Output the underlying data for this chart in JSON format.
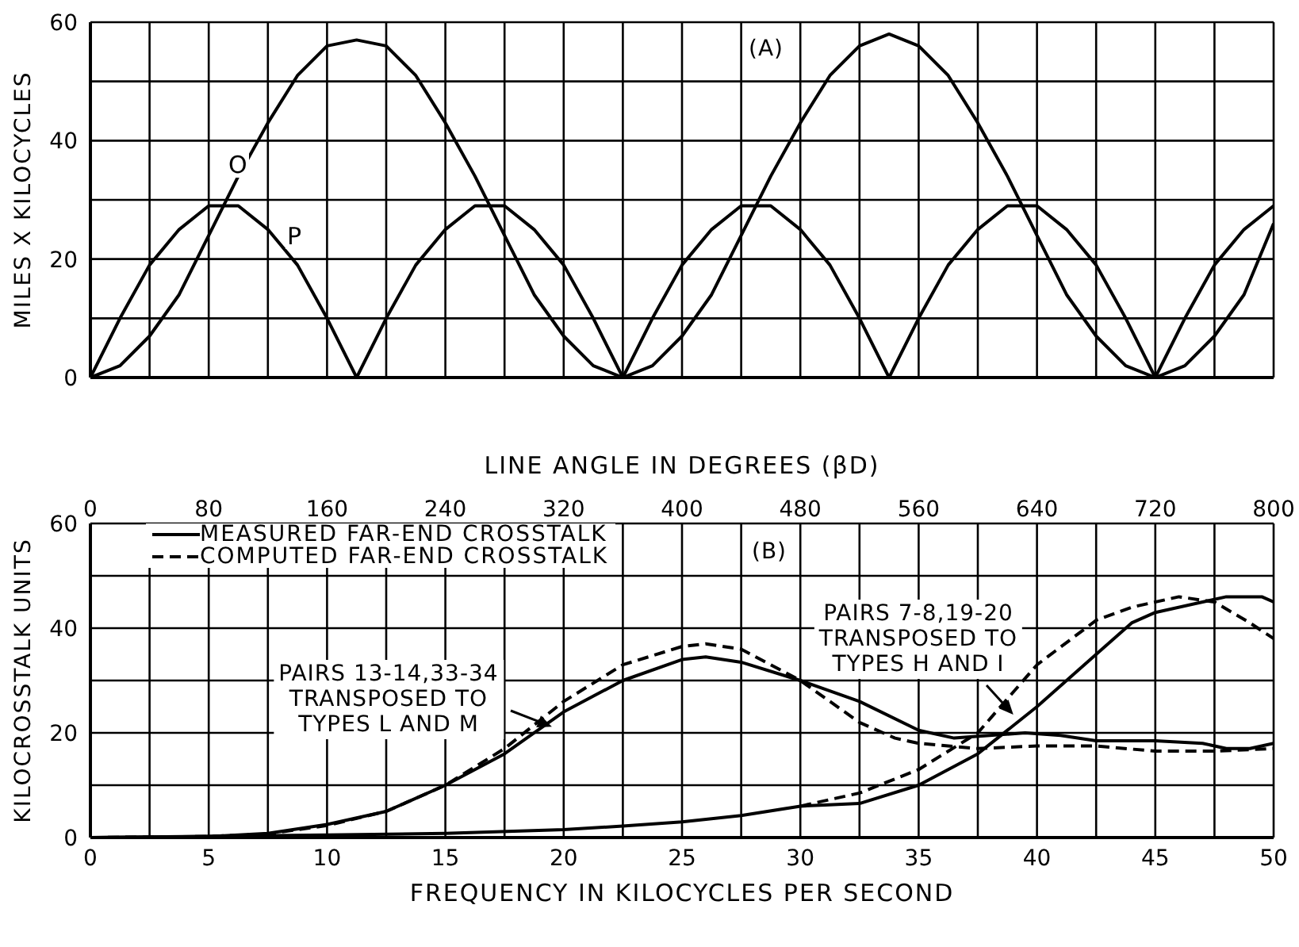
{
  "chart_data": [
    {
      "type": "line",
      "ylabel": "MILES X KILOCYCLES",
      "xlabel": "LINE ANGLE IN DEGREES (βD)",
      "annotations": [
        "(A)"
      ],
      "xlim": [
        0,
        800
      ],
      "xticks": [
        0,
        {
          "value": 40,
          "label": null
        },
        80,
        {
          "value": 120,
          "label": null
        },
        160,
        {
          "value": 200,
          "label": null
        },
        240,
        {
          "value": 280,
          "label": null
        },
        320,
        {
          "value": 360,
          "label": null
        },
        400,
        {
          "value": 440,
          "label": null
        },
        480,
        {
          "value": 520,
          "label": null
        },
        560,
        {
          "value": 600,
          "label": null
        },
        640,
        {
          "value": 680,
          "label": null
        },
        720,
        {
          "value": 760,
          "label": null
        },
        800
      ],
      "ylim": [
        0,
        60
      ],
      "yticks": [
        0,
        {
          "value": 10,
          "label": null
        },
        20,
        {
          "value": 30,
          "label": null
        },
        40,
        {
          "value": 50,
          "label": null
        },
        60
      ],
      "grid": true,
      "x": [
        0,
        20,
        40,
        60,
        80,
        100,
        120,
        140,
        160,
        180,
        200,
        220,
        240,
        260,
        280,
        300,
        320,
        340,
        360,
        380,
        400,
        420,
        440,
        460,
        480,
        500,
        520,
        540,
        560,
        580,
        600,
        620,
        640,
        660,
        680,
        700,
        720,
        740,
        760,
        780,
        800
      ],
      "series": [
        {
          "name": "O",
          "color": "#000000",
          "line_style": "solid",
          "values": [
            0,
            2,
            7,
            14,
            24,
            34,
            43,
            51,
            56,
            57,
            56,
            51,
            43,
            34,
            24,
            14,
            7,
            2,
            0,
            2,
            7,
            14,
            24,
            34,
            43,
            51,
            56,
            58,
            56,
            51,
            43,
            34,
            24,
            14,
            7,
            2,
            0,
            2,
            7,
            14,
            26
          ]
        },
        {
          "name": "P",
          "color": "#000000",
          "line_style": "solid",
          "values": [
            0,
            10,
            19,
            25,
            29,
            29,
            25,
            19,
            10,
            0,
            10,
            19,
            25,
            29,
            29,
            25,
            19,
            10,
            0,
            10,
            19,
            25,
            29,
            29,
            25,
            19,
            10,
            0,
            10,
            19,
            25,
            29,
            29,
            25,
            19,
            10,
            0,
            10,
            19,
            25,
            29
          ]
        }
      ]
    },
    {
      "type": "line",
      "xlabel": "FREQUENCY IN KILOCYCLES PER SECOND",
      "ylabel": "KILOCROSSTALK UNITS",
      "annotations": [
        "(B)",
        {
          "text": "PAIRS 13-14,33-34\nTRANSPOSED TO\nTYPES L AND M",
          "x": 19.5,
          "y": 26
        },
        {
          "text": "PAIRS 7-8,19-20\nTRANSPOSED TO\nTYPES H AND I",
          "x": 39,
          "y": 28
        }
      ],
      "xlim": [
        0,
        50
      ],
      "xticks": [
        0,
        {
          "value": 2.5,
          "label": null
        },
        5,
        {
          "value": 7.5,
          "label": null
        },
        10,
        {
          "value": 12.5,
          "label": null
        },
        15,
        {
          "value": 17.5,
          "label": null
        },
        20,
        {
          "value": 22.5,
          "label": null
        },
        25,
        {
          "value": 27.5,
          "label": null
        },
        30,
        {
          "value": 32.5,
          "label": null
        },
        35,
        {
          "value": 37.5,
          "label": null
        },
        40,
        {
          "value": 42.5,
          "label": null
        },
        45,
        {
          "value": 47.5,
          "label": null
        },
        50
      ],
      "ylim": [
        0,
        60
      ],
      "yticks": [
        0,
        {
          "value": 10,
          "label": null
        },
        20,
        {
          "value": 30,
          "label": null
        },
        40,
        {
          "value": 50,
          "label": null
        },
        60
      ],
      "grid": true,
      "legend": "top left",
      "series": [
        {
          "name": "MEASURED FAR-END CROSSTALK",
          "color": "#000000",
          "line_style": "solid",
          "x": [
            0,
            5,
            7.5,
            10,
            12.5,
            15,
            17.5,
            20,
            22.5,
            25,
            26,
            27.5,
            30,
            32.5,
            35,
            36.5,
            38,
            39.5,
            41,
            42.5,
            45,
            47,
            48,
            49,
            50
          ],
          "values": [
            0,
            0.2,
            0.8,
            2.5,
            5,
            10,
            16,
            24,
            30,
            34,
            34.5,
            33.5,
            30,
            26,
            20.5,
            19,
            19.5,
            20,
            19.5,
            18.5,
            18.5,
            18,
            17,
            17,
            18
          ]
        },
        {
          "name": "COMPUTED FAR-END CROSSTALK",
          "color": "#000000",
          "line_style": "dashed",
          "x": [
            0,
            5,
            7.5,
            10,
            12.5,
            15,
            17.5,
            20,
            22.5,
            25,
            26,
            27.5,
            30,
            32.5,
            34,
            35,
            37.5,
            40,
            42.5,
            45,
            47.5,
            50
          ],
          "values": [
            0,
            0.2,
            0.7,
            2.3,
            5,
            10,
            17,
            26,
            33,
            36.5,
            37,
            36,
            30,
            22,
            19,
            18,
            17,
            17.5,
            17.5,
            16.5,
            16.5,
            17
          ]
        },
        {
          "color": "#000000",
          "line_style": "solid",
          "x": [
            0,
            10,
            15,
            20,
            22.5,
            25,
            27.5,
            30,
            32.5,
            35,
            37.5,
            40,
            42.5,
            44,
            45,
            47,
            48,
            49.5,
            50
          ],
          "values": [
            0,
            0.5,
            0.8,
            1.5,
            2.2,
            3,
            4.2,
            6,
            6.5,
            10,
            16,
            25,
            35,
            41,
            43,
            45,
            46,
            46,
            45
          ]
        },
        {
          "color": "#000000",
          "line_style": "dashed",
          "x": [
            30,
            32.5,
            35,
            37.5,
            40,
            42.5,
            44,
            46,
            47.5,
            49,
            50
          ],
          "values": [
            6,
            8.5,
            13,
            20,
            33,
            41.5,
            44,
            46,
            45,
            41,
            38
          ]
        }
      ]
    }
  ]
}
